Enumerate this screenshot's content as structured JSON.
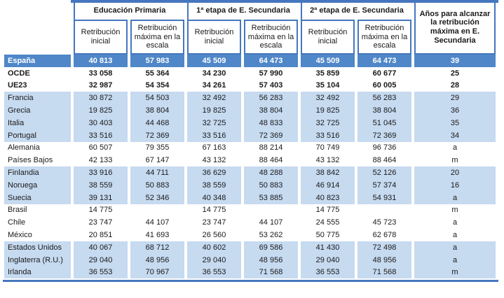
{
  "colors": {
    "accent": "#4577BE",
    "highlight_bg": "#4F87C8",
    "highlight_text": "#FFFFFF",
    "stripe_bg": "#C6DAF0",
    "text": "#1A1A1A"
  },
  "table": {
    "header_groups": [
      {
        "label": "Educación Primaria"
      },
      {
        "label": "1ª etapa de E. Secundaria"
      },
      {
        "label": "2ª etapa de E. Secundaria"
      }
    ],
    "sub_headers": [
      "Retribución inicial",
      "Retribución máxima en la escala",
      "Retribución inicial",
      "Retribución máxima en la escala",
      "Retribución inicial",
      "Retribución máxima en la escala"
    ],
    "years_header": "Años para alcanzar la retribución máxima en E. Secundaria",
    "rows": [
      {
        "name": "España",
        "style": "highlight",
        "values": [
          "40 813",
          "57 983",
          "45 509",
          "64 473",
          "45 509",
          "64 473",
          "39"
        ]
      },
      {
        "name": "OCDE",
        "style": "bold",
        "values": [
          "33 058",
          "55 364",
          "34 230",
          "57 990",
          "35 859",
          "60 677",
          "25"
        ]
      },
      {
        "name": "UE23",
        "style": "bold",
        "values": [
          "32 987",
          "54 354",
          "34 261",
          "57 403",
          "35 104",
          "60 005",
          "28"
        ]
      },
      {
        "name": "Francia",
        "style": "stripe",
        "values": [
          "30 872",
          "54 503",
          "32 492",
          "56 283",
          "32 492",
          "56 283",
          "29"
        ]
      },
      {
        "name": "Grecia",
        "style": "stripe",
        "values": [
          "19 825",
          "38 804",
          "19 825",
          "38 804",
          "19 825",
          "38 804",
          "36"
        ]
      },
      {
        "name": "Italia",
        "style": "stripe",
        "values": [
          "30 403",
          "44 468",
          "32 725",
          "48 833",
          "32 725",
          "51 045",
          "35"
        ]
      },
      {
        "name": "Portugal",
        "style": "stripe",
        "values": [
          "33 516",
          "72 369",
          "33 516",
          "72 369",
          "33 516",
          "72 369",
          "34"
        ]
      },
      {
        "name": "Alemania",
        "style": "plain",
        "values": [
          "60 507",
          "79 355",
          "67 163",
          "88 214",
          "70 749",
          "96 736",
          "a"
        ]
      },
      {
        "name": "Países Bajos",
        "style": "plain",
        "values": [
          "42 133",
          "67 147",
          "43 132",
          "88 464",
          "43 132",
          "88 464",
          "m"
        ]
      },
      {
        "name": "Finlandia",
        "style": "stripe",
        "values": [
          "33 916",
          "44 711",
          "36 629",
          "48 288",
          "38 842",
          "52 126",
          "20"
        ]
      },
      {
        "name": "Noruega",
        "style": "stripe",
        "values": [
          "38 559",
          "50 883",
          "38 559",
          "50 883",
          "46 914",
          "57 374",
          "16"
        ]
      },
      {
        "name": "Suecia",
        "style": "stripe",
        "values": [
          "39 131",
          "52 346",
          "40 348",
          "53 885",
          "40 823",
          "54 931",
          "a"
        ]
      },
      {
        "name": "Brasil",
        "style": "plain",
        "values": [
          "14 775",
          "",
          "14 775",
          "",
          "14 775",
          "",
          "m"
        ]
      },
      {
        "name": "Chile",
        "style": "plain",
        "values": [
          "23 747",
          "44 107",
          "23 747",
          "44 107",
          "24 555",
          "45 723",
          "a"
        ]
      },
      {
        "name": "México",
        "style": "plain",
        "values": [
          "20 851",
          "41 693",
          "26 560",
          "53 262",
          "50 775",
          "62 678",
          "a"
        ]
      },
      {
        "name": "Estados Unidos",
        "style": "stripe",
        "values": [
          "40 067",
          "68 712",
          "40 602",
          "69 586",
          "41 430",
          "72 498",
          "a"
        ]
      },
      {
        "name": "Inglaterra (R.U.)",
        "style": "stripe",
        "values": [
          "29 040",
          "48 956",
          "29 040",
          "48 956",
          "29 040",
          "48 956",
          "a"
        ]
      },
      {
        "name": "Irlanda",
        "style": "stripe",
        "values": [
          "36 553",
          "70 967",
          "36 553",
          "71 568",
          "36 553",
          "71 568",
          "m"
        ]
      }
    ]
  }
}
